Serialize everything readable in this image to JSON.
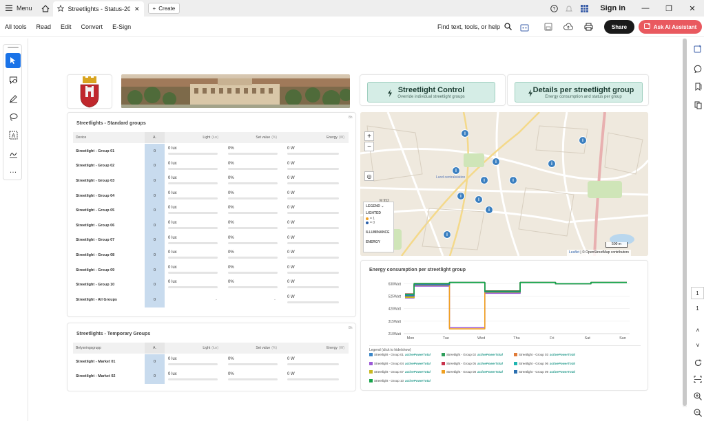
{
  "app": {
    "menu_label": "Menu",
    "tab_title": "Streetlights - Status-2026...",
    "create_label": "Create",
    "signin_label": "Sign in"
  },
  "toolbar": {
    "items": [
      "All tools",
      "Read",
      "Edit",
      "Convert",
      "E-Sign"
    ],
    "find_placeholder": "Find text, tools, or help",
    "share_label": "Share",
    "ai_label": "Ask AI Assistant"
  },
  "page_nav": {
    "page_current": "1",
    "page_total": "1"
  },
  "controls": {
    "control_title": "Streetlight Control",
    "control_sub": "Override individual streetlight groups",
    "details_title": "Details per streetlight group",
    "details_sub": "Energy consumption and status per group"
  },
  "standard": {
    "title": "Streetlights - Standard groups",
    "age": "8h",
    "col_device": "Device",
    "col_a": "A.",
    "col_light": "Light",
    "col_light_unit": "(lux)",
    "col_set": "Set value",
    "col_set_unit": "(%)",
    "col_energy": "Energy",
    "col_energy_unit": "(W)",
    "rows": [
      {
        "name": "Streetlight - Group 01",
        "a": "0",
        "light": "0 lux",
        "set": "0%",
        "energy": "0 W"
      },
      {
        "name": "Streetlight - Group 02",
        "a": "0",
        "light": "0 lux",
        "set": "0%",
        "energy": "0 W"
      },
      {
        "name": "Streetlight - Group 03",
        "a": "0",
        "light": "0 lux",
        "set": "0%",
        "energy": "0 W"
      },
      {
        "name": "Streetlight - Group 04",
        "a": "0",
        "light": "0 lux",
        "set": "0%",
        "energy": "0 W"
      },
      {
        "name": "Streetlight - Group 05",
        "a": "0",
        "light": "0 lux",
        "set": "0%",
        "energy": "0 W"
      },
      {
        "name": "Streetlight - Group 06",
        "a": "0",
        "light": "0 lux",
        "set": "0%",
        "energy": "0 W"
      },
      {
        "name": "Streetlight - Group 07",
        "a": "0",
        "light": "0 lux",
        "set": "0%",
        "energy": "0 W"
      },
      {
        "name": "Streetlight - Group 08",
        "a": "0",
        "light": "0 lux",
        "set": "0%",
        "energy": "0 W"
      },
      {
        "name": "Streetlight - Group 09",
        "a": "0",
        "light": "0 lux",
        "set": "0%",
        "energy": "0 W"
      },
      {
        "name": "Streetlight - Group 10",
        "a": "0",
        "light": "0 lux",
        "set": "0%",
        "energy": "0 W"
      },
      {
        "name": "Streetlight - All Groups",
        "a": "0",
        "light": "-",
        "set": "-",
        "energy": "0 W"
      }
    ]
  },
  "temporary": {
    "title": "Streetlights - Temporary Groups",
    "age": "8h",
    "col_device": "Belysningsgrupp",
    "col_a": "A.",
    "col_light": "Light",
    "col_light_unit": "(lux)",
    "col_set": "Set value",
    "col_set_unit": "(%)",
    "col_energy": "Energy",
    "col_energy_unit": "(W)",
    "rows": [
      {
        "name": "Streetlight - Market 01",
        "a": "0",
        "light": "0 lux",
        "set": "0%",
        "energy": "0 W"
      },
      {
        "name": "Streetlight - Market 02",
        "a": "0",
        "light": "0 lux",
        "set": "0%",
        "energy": "0 W"
      }
    ]
  },
  "map": {
    "legend_title": "LEGEND",
    "legend_lighted": "LIGHTED",
    "legend_on": "= 1",
    "legend_off": "= 0",
    "legend_illuminance": "ILLUMINANCE",
    "legend_energy": "ENERGY",
    "scale_label": "500 m",
    "attribution_leaflet": "Leaflet",
    "attribution_rest": "| © OpenStreetMap contributors",
    "place_label": "Lund centralstation",
    "road_label": "M 952"
  },
  "chart_data": {
    "type": "line",
    "title": "Energy consumption per streetlight group",
    "legend_hint": "Legend (click to hide/show)",
    "x": [
      "Mon",
      "Tue",
      "Wed",
      "Thu",
      "Fri",
      "Sat",
      "Sun"
    ],
    "y_ticks": [
      "630Watt",
      "525Watt",
      "420Watt",
      "315Watt",
      "210Watt"
    ],
    "ylim": [
      210,
      650
    ],
    "series_tag": "activePowerTotal",
    "series": [
      {
        "name": "Streetlight - Group 01",
        "color": "#3a86c8",
        "values": [
          530,
          620,
          640,
          560,
          640,
          630,
          640
        ]
      },
      {
        "name": "Streetlight - Group 02",
        "color": "#2e9e5b",
        "values": [
          540,
          625,
          640,
          565,
          640,
          630,
          640
        ]
      },
      {
        "name": "Streetlight - Group 03",
        "color": "#e07b39",
        "values": [
          520,
          615,
          640,
          555,
          640,
          630,
          640
        ]
      },
      {
        "name": "Streetlight - Group 04",
        "color": "#9b59d6",
        "values": [
          510,
          610,
          260,
          550,
          640,
          630,
          640
        ]
      },
      {
        "name": "Streetlight - Group 05",
        "color": "#c8324b",
        "values": [
          545,
          628,
          640,
          570,
          640,
          630,
          640
        ]
      },
      {
        "name": "Streetlight - Group 06",
        "color": "#1fb5b0",
        "values": [
          535,
          622,
          640,
          560,
          640,
          630,
          640
        ]
      },
      {
        "name": "Streetlight - Group 07",
        "color": "#c9b820",
        "values": [
          515,
          618,
          640,
          558,
          640,
          630,
          640
        ]
      },
      {
        "name": "Streetlight - Group 08",
        "color": "#f0a020",
        "values": [
          525,
          620,
          250,
          562,
          640,
          630,
          640
        ]
      },
      {
        "name": "Streetlight - Group 09",
        "color": "#2a6fb0",
        "values": [
          528,
          621,
          640,
          561,
          640,
          630,
          640
        ]
      },
      {
        "name": "Streetlight - Group 10",
        "color": "#17a34a",
        "values": [
          542,
          632,
          640,
          568,
          640,
          630,
          640
        ]
      }
    ]
  }
}
